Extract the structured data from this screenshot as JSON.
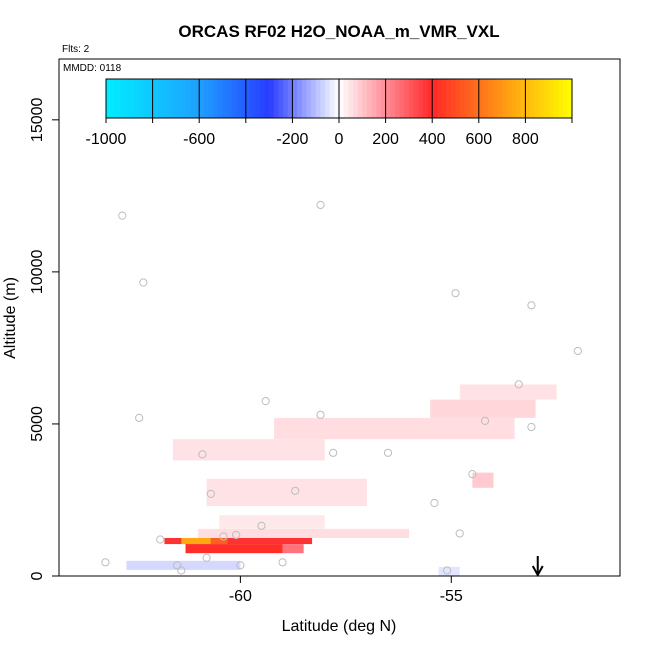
{
  "chart_data": {
    "type": "heatmap",
    "title": "ORCAS RF02 H2O_NOAA_m_VMR_VXL",
    "flights_label": "Flts: 2",
    "date_label": "MMDD: 0118",
    "xlabel": "Latitude (deg N)",
    "ylabel": "Altitude (m)",
    "xlim": [
      -64.3,
      -51.0
    ],
    "ylim": [
      0,
      17000
    ],
    "x_ticks": [
      -60,
      -55
    ],
    "y_ticks": [
      0,
      5000,
      10000,
      15000
    ],
    "legend": {
      "position": "top",
      "range": [
        -1000,
        1000
      ],
      "tick_values": [
        -1000,
        -600,
        -200,
        0,
        200,
        400,
        600,
        800
      ],
      "tick_labels": [
        "-1000",
        "-600",
        "-200",
        "0",
        "200",
        "400",
        "600",
        "800"
      ],
      "boundaries": [
        -1000,
        -800,
        -600,
        -400,
        -200,
        0,
        200,
        400,
        600,
        800,
        1000
      ]
    },
    "cells": [
      {
        "lat": [
          -61.8,
          -58.3
        ],
        "alt": [
          1050,
          1250
        ],
        "value": 380
      },
      {
        "lat": [
          -61.4,
          -60.7
        ],
        "alt": [
          1050,
          1250
        ],
        "value": 750
      },
      {
        "lat": [
          -60.7,
          -60.3
        ],
        "alt": [
          1050,
          1250
        ],
        "value": 550
      },
      {
        "lat": [
          -61.3,
          -59.0
        ],
        "alt": [
          750,
          1050
        ],
        "value": 420
      },
      {
        "lat": [
          -59.0,
          -58.5
        ],
        "alt": [
          750,
          1050
        ],
        "value": 250
      },
      {
        "lat": [
          -61.0,
          -56.0
        ],
        "alt": [
          1250,
          1550
        ],
        "value": 60
      },
      {
        "lat": [
          -60.5,
          -58.0
        ],
        "alt": [
          1550,
          2000
        ],
        "value": 40
      },
      {
        "lat": [
          -60.8,
          -57.0
        ],
        "alt": [
          2300,
          3200
        ],
        "value": 50
      },
      {
        "lat": [
          -61.6,
          -58.0
        ],
        "alt": [
          3800,
          4500
        ],
        "value": 50
      },
      {
        "lat": [
          -59.2,
          -53.5
        ],
        "alt": [
          4500,
          5200
        ],
        "value": 60
      },
      {
        "lat": [
          -55.5,
          -53.0
        ],
        "alt": [
          5200,
          5800
        ],
        "value": 70
      },
      {
        "lat": [
          -54.8,
          -52.5
        ],
        "alt": [
          5800,
          6300
        ],
        "value": 50
      },
      {
        "lat": [
          -54.5,
          -54.0
        ],
        "alt": [
          2900,
          3400
        ],
        "value": 90
      },
      {
        "lat": [
          -62.7,
          -60.0
        ],
        "alt": [
          200,
          500
        ],
        "value": -60
      },
      {
        "lat": [
          -55.3,
          -54.8
        ],
        "alt": [
          0,
          300
        ],
        "value": -40
      }
    ],
    "points": [
      {
        "lat": -63.2,
        "alt": 450
      },
      {
        "lat": -62.8,
        "alt": 11850
      },
      {
        "lat": -62.3,
        "alt": 9650
      },
      {
        "lat": -62.4,
        "alt": 5200
      },
      {
        "lat": -61.9,
        "alt": 1200
      },
      {
        "lat": -61.5,
        "alt": 350
      },
      {
        "lat": -61.4,
        "alt": 180
      },
      {
        "lat": -60.9,
        "alt": 4000
      },
      {
        "lat": -60.7,
        "alt": 2700
      },
      {
        "lat": -60.4,
        "alt": 1300
      },
      {
        "lat": -60.1,
        "alt": 1350
      },
      {
        "lat": -60.0,
        "alt": 350
      },
      {
        "lat": -59.5,
        "alt": 1650
      },
      {
        "lat": -59.4,
        "alt": 5750
      },
      {
        "lat": -59.0,
        "alt": 450
      },
      {
        "lat": -58.7,
        "alt": 2800
      },
      {
        "lat": -58.1,
        "alt": 12200
      },
      {
        "lat": -58.1,
        "alt": 5300
      },
      {
        "lat": -57.8,
        "alt": 4050
      },
      {
        "lat": -56.5,
        "alt": 4050
      },
      {
        "lat": -55.4,
        "alt": 2400
      },
      {
        "lat": -55.1,
        "alt": 180
      },
      {
        "lat": -54.9,
        "alt": 9300
      },
      {
        "lat": -54.8,
        "alt": 1400
      },
      {
        "lat": -54.5,
        "alt": 3350
      },
      {
        "lat": -54.2,
        "alt": 5100
      },
      {
        "lat": -53.4,
        "alt": 6300
      },
      {
        "lat": -53.1,
        "alt": 4900
      },
      {
        "lat": -53.1,
        "alt": 8900
      },
      {
        "lat": -52.0,
        "alt": 7400
      },
      {
        "lat": -60.8,
        "alt": 600
      }
    ],
    "arrow": {
      "lat": -52.95
    }
  }
}
